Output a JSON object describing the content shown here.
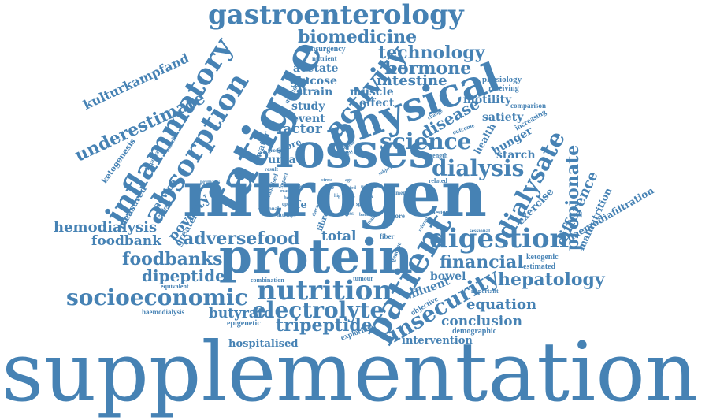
{
  "color": "#4682B4",
  "words": [
    {
      "text": "supplementation"
    },
    {
      "text": "nitrogen"
    },
    {
      "text": "protein"
    },
    {
      "text": "losses"
    },
    {
      "text": "fatigue"
    },
    {
      "text": "physical"
    },
    {
      "text": "patient"
    },
    {
      "text": "absorption"
    },
    {
      "text": "inflammatory"
    },
    {
      "text": "gastroenterology"
    },
    {
      "text": "activity"
    },
    {
      "text": "digestion"
    },
    {
      "text": "nutrition"
    },
    {
      "text": "electrolyte"
    },
    {
      "text": "socioeconomic"
    },
    {
      "text": "science"
    },
    {
      "text": "dialysis"
    },
    {
      "text": "dialysate"
    },
    {
      "text": "insecurity"
    },
    {
      "text": "biomedicine"
    },
    {
      "text": "technology"
    },
    {
      "text": "underestimate"
    },
    {
      "text": "adversefood"
    },
    {
      "text": "foodbanks"
    },
    {
      "text": "hepatology"
    },
    {
      "text": "propionate"
    },
    {
      "text": "financial"
    },
    {
      "text": "hormone"
    },
    {
      "text": "tripeptide"
    },
    {
      "text": "dipeptide"
    },
    {
      "text": "hemodialysis"
    },
    {
      "text": "kulturkampfand"
    },
    {
      "text": "difference"
    },
    {
      "text": "intestine"
    },
    {
      "text": "disease"
    },
    {
      "text": "equation"
    },
    {
      "text": "conclusion"
    },
    {
      "text": "butyrate"
    },
    {
      "text": "poverty"
    },
    {
      "text": "foodbank"
    },
    {
      "text": "factor"
    },
    {
      "text": "total"
    },
    {
      "text": "effluent"
    },
    {
      "text": "acetate"
    },
    {
      "text": "glucose"
    },
    {
      "text": "muscle"
    },
    {
      "text": "strain"
    },
    {
      "text": "study"
    },
    {
      "text": "event"
    },
    {
      "text": "effect"
    },
    {
      "text": "motility"
    },
    {
      "text": "satiety"
    },
    {
      "text": "hunger"
    },
    {
      "text": "starch"
    },
    {
      "text": "bowel"
    },
    {
      "text": "intervention"
    },
    {
      "text": "hospitalised"
    },
    {
      "text": "haemodiafiltration"
    },
    {
      "text": "malnutrition"
    },
    {
      "text": "exercise"
    },
    {
      "text": "ketogenesis"
    },
    {
      "text": "measured"
    },
    {
      "text": "advice"
    },
    {
      "text": "greater"
    },
    {
      "text": "urea"
    },
    {
      "text": "score"
    },
    {
      "text": "acid"
    },
    {
      "text": "fibre"
    },
    {
      "text": "life"
    },
    {
      "text": "water"
    },
    {
      "text": "health"
    },
    {
      "text": "physiology"
    },
    {
      "text": "receiving"
    },
    {
      "text": "increasing"
    },
    {
      "text": "comparison"
    },
    {
      "text": "ketogenic"
    },
    {
      "text": "estimated"
    },
    {
      "text": "important"
    },
    {
      "text": "demographic"
    },
    {
      "text": "objective"
    },
    {
      "text": "exploring"
    },
    {
      "text": "epigenetic"
    },
    {
      "text": "haemodialysis"
    },
    {
      "text": "equivalent"
    },
    {
      "text": "combination"
    },
    {
      "text": "tumour"
    },
    {
      "text": "insurgency"
    },
    {
      "text": "nutrient"
    },
    {
      "text": "method"
    },
    {
      "text": "more"
    },
    {
      "text": "fiber"
    },
    {
      "text": "genome"
    },
    {
      "text": "design"
    },
    {
      "text": "sessional"
    },
    {
      "text": "related"
    },
    {
      "text": "strength"
    },
    {
      "text": "outcome"
    },
    {
      "text": "change"
    },
    {
      "text": "randomised"
    },
    {
      "text": "hypoxia"
    },
    {
      "text": "benefit"
    },
    {
      "text": "evidence"
    },
    {
      "text": "result"
    },
    {
      "text": "group"
    },
    {
      "text": "primary"
    },
    {
      "text": "sectional"
    },
    {
      "text": "attempt"
    },
    {
      "text": "impact"
    },
    {
      "text": "cpap"
    },
    {
      "text": "heart"
    },
    {
      "text": "spent"
    },
    {
      "text": "bone"
    },
    {
      "text": "user"
    },
    {
      "text": "risk"
    },
    {
      "text": "intake"
    },
    {
      "text": "loss"
    },
    {
      "text": "treatment"
    },
    {
      "text": "referral"
    },
    {
      "text": "subject"
    },
    {
      "text": "weekly"
    },
    {
      "text": "similar"
    },
    {
      "text": "therapy"
    },
    {
      "text": "reason"
    },
    {
      "text": "week"
    },
    {
      "text": "scale"
    },
    {
      "text": "stress"
    },
    {
      "text": "age"
    },
    {
      "text": "fed"
    },
    {
      "text": "life"
    },
    {
      "text": "hip"
    },
    {
      "text": "early"
    }
  ]
}
